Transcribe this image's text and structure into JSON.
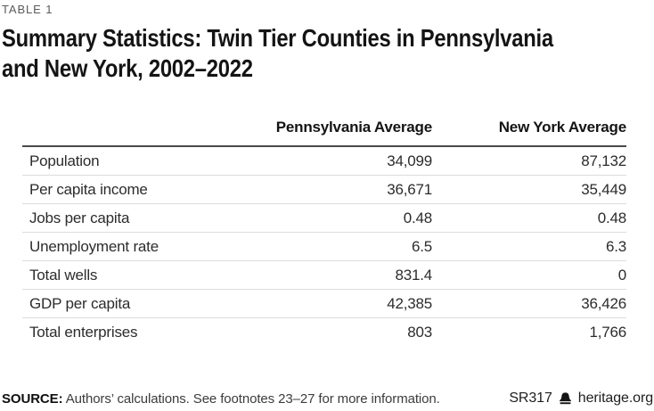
{
  "page": {
    "label": "TABLE 1",
    "title_line1": "Summary Statistics: Twin Tier Counties in Pennsylvania",
    "title_line2": "and New York, 2002–2022"
  },
  "table": {
    "columns": [
      "",
      "Pennsylvania Average",
      "New York Average"
    ],
    "rows": [
      {
        "label": "Population",
        "pa": "34,099",
        "ny": "87,132"
      },
      {
        "label": "Per capita income",
        "pa": "36,671",
        "ny": "35,449"
      },
      {
        "label": "Jobs per capita",
        "pa": "0.48",
        "ny": "0.48"
      },
      {
        "label": "Unemployment rate",
        "pa": "6.5",
        "ny": "6.3"
      },
      {
        "label": "Total wells",
        "pa": "831.4",
        "ny": "0"
      },
      {
        "label": "GDP per capita",
        "pa": "42,385",
        "ny": "36,426"
      },
      {
        "label": "Total enterprises",
        "pa": "803",
        "ny": "1,766"
      }
    ]
  },
  "footer": {
    "source_label": "SOURCE:",
    "source_text": "Authors’ calculations. See footnotes 23–27 for more information.",
    "report_id": "SR317",
    "site": "heritage.org",
    "icon": "heritage-bell-icon"
  },
  "colors": {
    "title_text": "#141414",
    "label_text": "#5b5b5e",
    "body_text": "#2c2c2e",
    "rule_dark": "#4a4a4c",
    "rule_light": "#dcdcde"
  }
}
